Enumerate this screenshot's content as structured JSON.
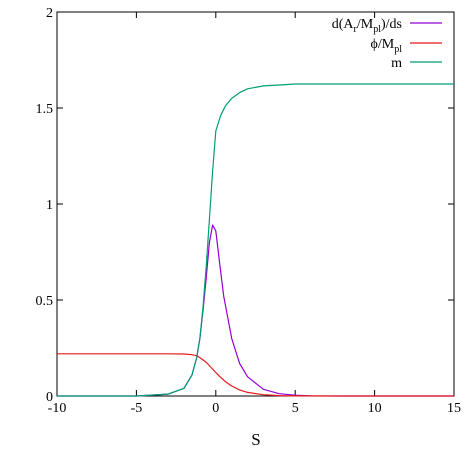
{
  "chart_data": {
    "type": "line",
    "title": "",
    "xlabel": "S",
    "ylabel": "",
    "xlim": [
      -10,
      15
    ],
    "ylim": [
      0,
      2
    ],
    "x_ticks": [
      -10,
      -5,
      0,
      5,
      10,
      15
    ],
    "x_tick_labels": [
      "-10",
      "-5",
      "0",
      "5",
      "10",
      "15"
    ],
    "y_ticks": [
      0,
      0.5,
      1,
      1.5,
      2
    ],
    "y_tick_labels": [
      "0",
      "0.5",
      "1",
      "1.5",
      "2"
    ],
    "grid": false,
    "legend_placement": "top-right",
    "series": [
      {
        "name": "d(A_r/M_pl)/ds",
        "legend_text": {
          "main": "d(A",
          "sub1": "r",
          "mid": "/M",
          "sub2": "pl",
          "tail": ")/ds"
        },
        "color": "#9400d3",
        "x": [
          -10,
          -5,
          -3,
          -2,
          -1.5,
          -1.2,
          -1,
          -0.8,
          -0.6,
          -0.4,
          -0.2,
          0,
          0.2,
          0.5,
          1,
          1.5,
          2,
          3,
          4,
          5,
          6,
          8,
          10,
          15
        ],
        "y": [
          0,
          0,
          0.01,
          0.04,
          0.11,
          0.2,
          0.3,
          0.45,
          0.62,
          0.8,
          0.89,
          0.86,
          0.72,
          0.52,
          0.3,
          0.17,
          0.1,
          0.035,
          0.012,
          0.004,
          0.001,
          0,
          0,
          0
        ]
      },
      {
        "name": "ϕ/M_pl",
        "legend_text": {
          "main": "ϕ/M",
          "sub": "pl"
        },
        "color": "#e41a1c",
        "x": [
          -10,
          -5,
          -3,
          -2,
          -1.5,
          -1.2,
          -1,
          -0.6,
          -0.2,
          0.2,
          0.6,
          1,
          1.5,
          2,
          3,
          4,
          5,
          7,
          10,
          15
        ],
        "y": [
          0.22,
          0.22,
          0.22,
          0.219,
          0.215,
          0.21,
          0.2,
          0.175,
          0.14,
          0.105,
          0.075,
          0.052,
          0.032,
          0.019,
          0.007,
          0.002,
          0.0006,
          0,
          0,
          0
        ]
      },
      {
        "name": "m",
        "legend_text": {
          "main": "m"
        },
        "color": "#009e73",
        "x": [
          -10,
          -5,
          -3,
          -2,
          -1.5,
          -1.2,
          -1,
          -0.8,
          -0.6,
          -0.4,
          -0.2,
          0,
          0.3,
          0.6,
          1,
          1.5,
          2,
          3,
          4,
          5,
          7,
          10,
          15
        ],
        "y": [
          0,
          0,
          0.01,
          0.04,
          0.11,
          0.2,
          0.3,
          0.47,
          0.68,
          0.92,
          1.17,
          1.38,
          1.46,
          1.51,
          1.55,
          1.58,
          1.6,
          1.615,
          1.62,
          1.625,
          1.625,
          1.625,
          1.625
        ]
      }
    ]
  }
}
